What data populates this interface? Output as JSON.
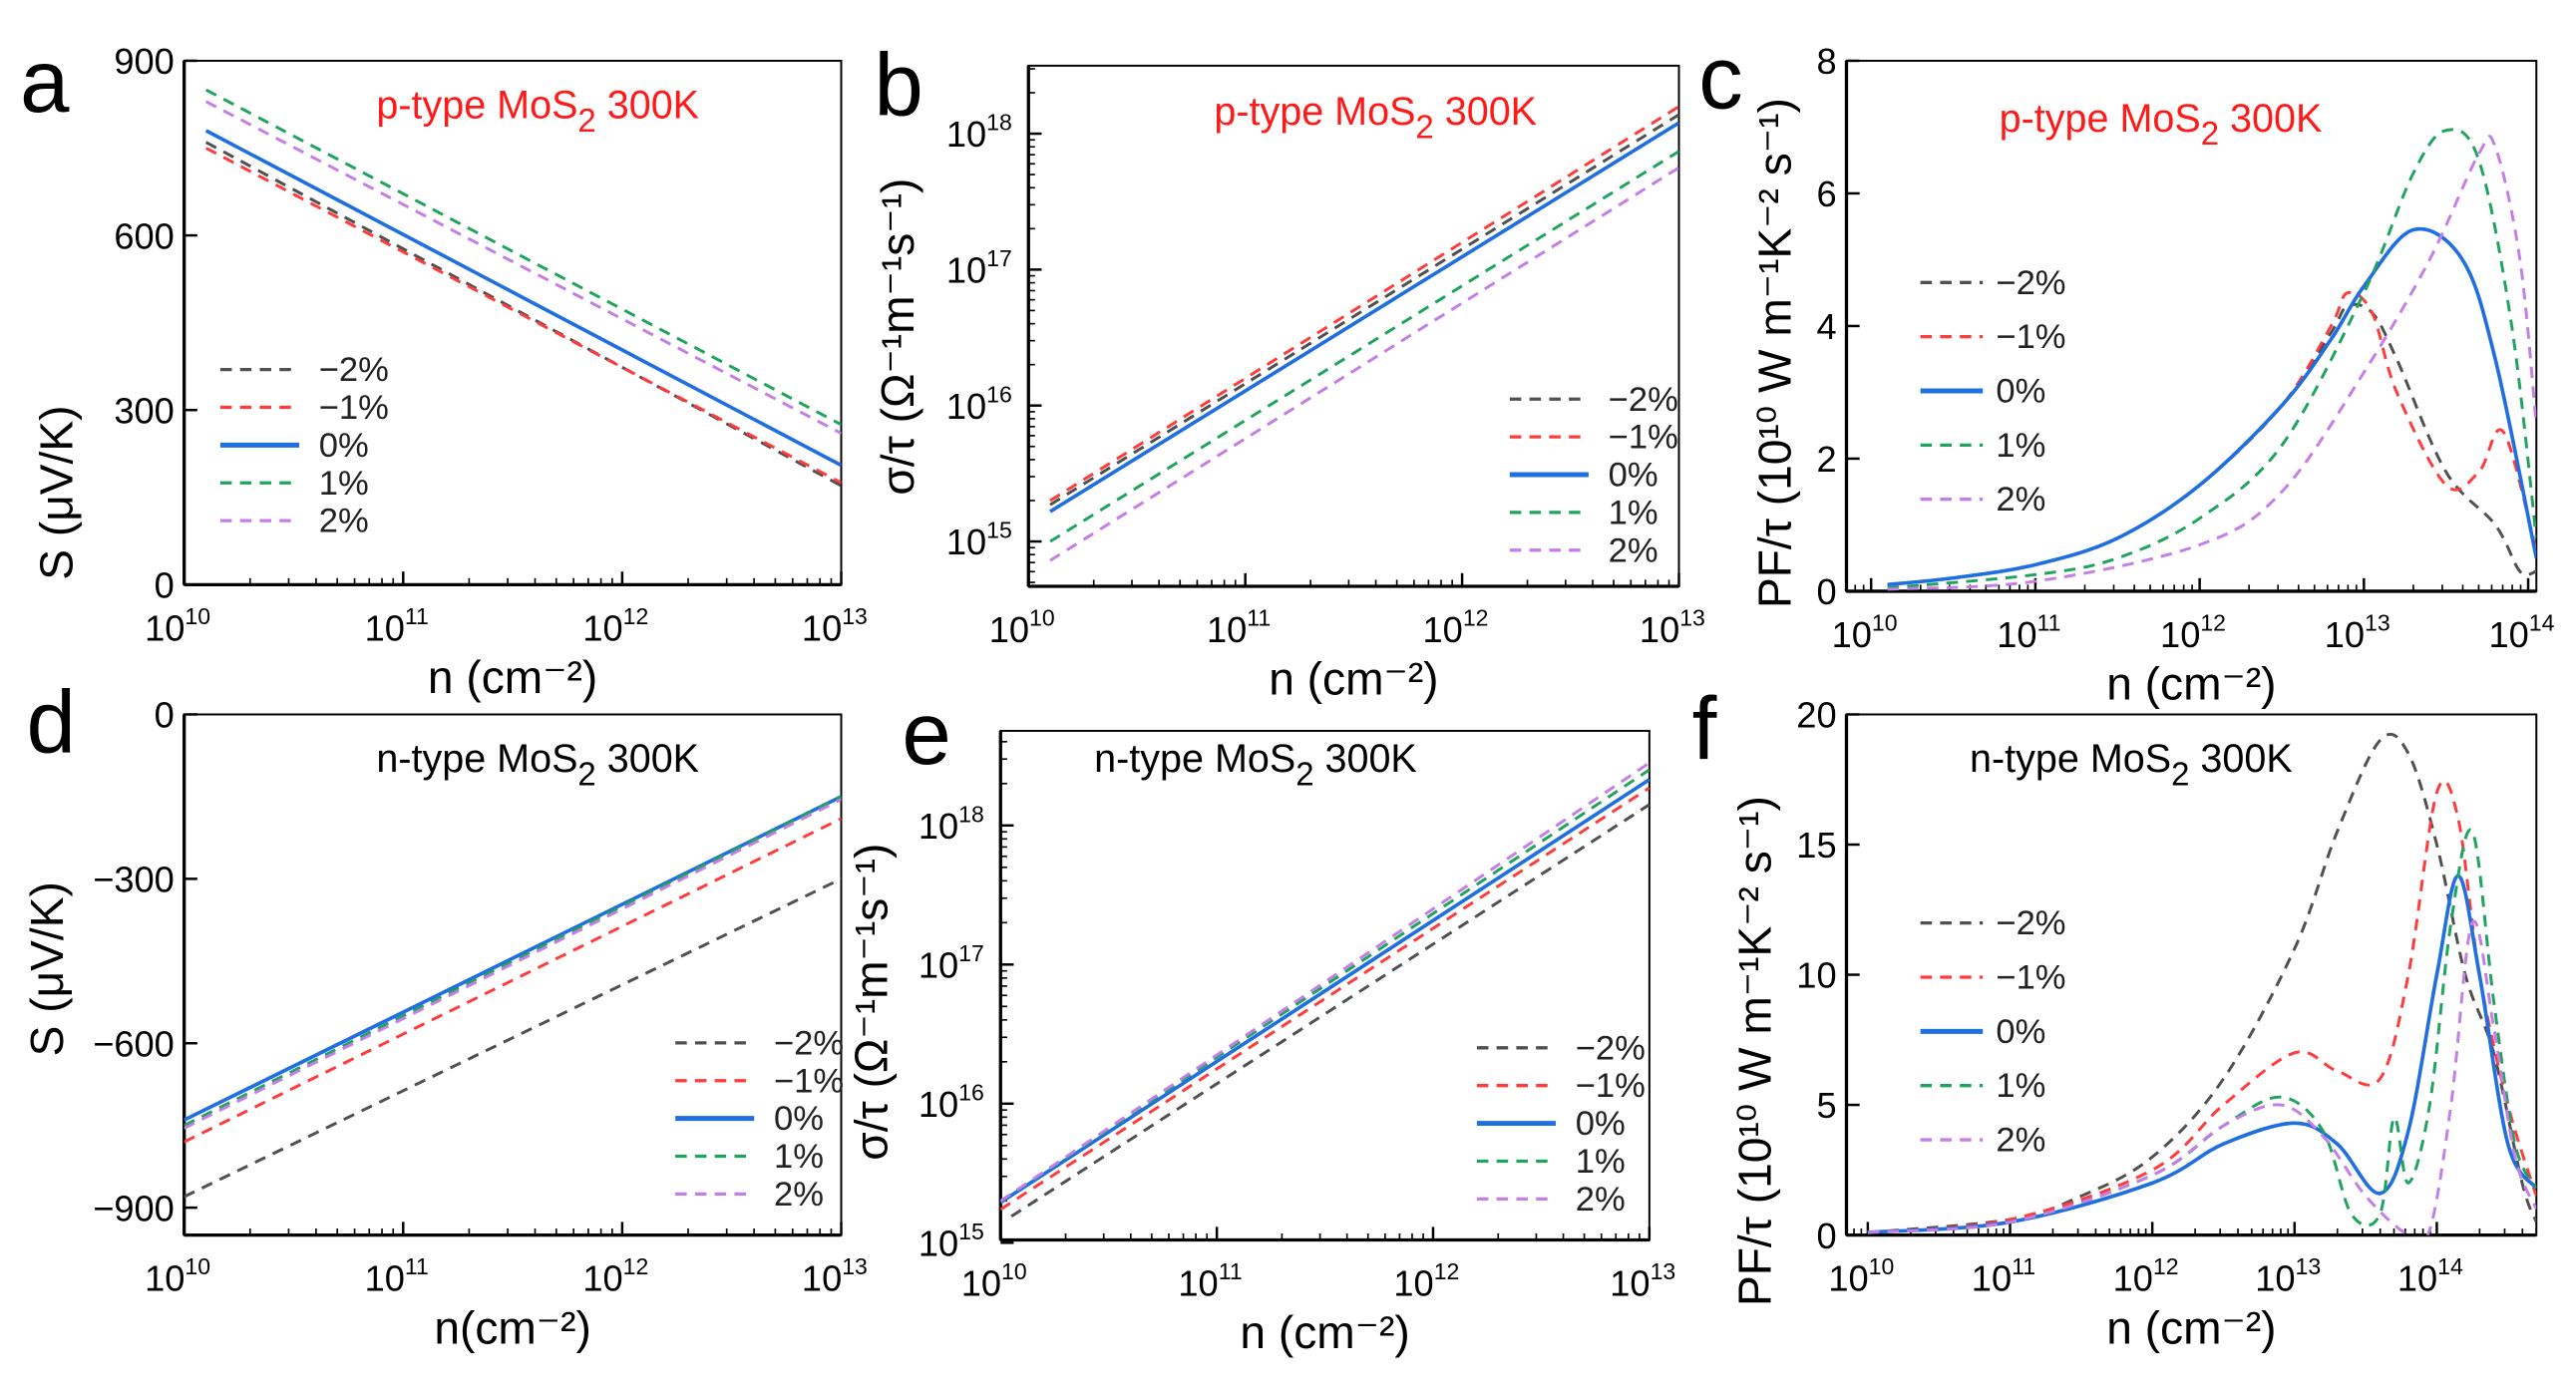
{
  "colors": {
    "-2%": "#505050",
    "-1%": "#ff3b3b",
    "0%": "#1f6fe0",
    "1%": "#1fa35e",
    "2%": "#c47ee6"
  },
  "chart_data": [
    {
      "panel": "a",
      "type": "line",
      "title": {
        "prefix": "p-type  MoS",
        "sub": "2",
        "suffix": "  300K",
        "color": "#ff1a1a"
      },
      "xlabel": "n (cm⁻²)",
      "ylabel": "S (μV/K)",
      "xscale": "log",
      "xlim_log10": [
        10,
        13
      ],
      "x_ticks_log10": [
        10,
        11,
        12,
        13
      ],
      "yscale": "linear",
      "ylim": [
        0,
        900
      ],
      "y_ticks": [
        0,
        300,
        600,
        900
      ],
      "series": [
        {
          "name": "−2%",
          "key": "-2%",
          "dash": true,
          "points": [
            [
              10.1,
              760
            ],
            [
              13,
              170
            ]
          ]
        },
        {
          "name": "−1%",
          "key": "-1%",
          "dash": true,
          "points": [
            [
              10.1,
              750
            ],
            [
              13,
              175
            ]
          ]
        },
        {
          "name": "0%",
          "key": "0%",
          "dash": false,
          "points": [
            [
              10.1,
              780
            ],
            [
              13,
              205
            ]
          ]
        },
        {
          "name": "1%",
          "key": "1%",
          "dash": true,
          "points": [
            [
              10.1,
              850
            ],
            [
              13,
              275
            ]
          ]
        },
        {
          "name": "2%",
          "key": "2%",
          "dash": true,
          "points": [
            [
              10.1,
              830
            ],
            [
              13,
              260
            ]
          ]
        }
      ]
    },
    {
      "panel": "b",
      "type": "line",
      "title": {
        "prefix": "p-type  MoS",
        "sub": "2",
        "suffix": "  300K",
        "color": "#ff1a1a"
      },
      "xlabel": "n (cm⁻²)",
      "ylabel": "σ/τ (Ω⁻¹m⁻¹s⁻¹)",
      "xscale": "log",
      "xlim_log10": [
        10,
        13
      ],
      "x_ticks_log10": [
        10,
        11,
        12,
        13
      ],
      "yscale": "log",
      "ylim_log10": [
        14.67,
        18.5
      ],
      "y_ticks_log10": [
        15,
        16,
        17,
        18
      ],
      "series": [
        {
          "name": "−2%",
          "key": "-2%",
          "dash": true,
          "points": [
            [
              10.1,
              15.27
            ],
            [
              13,
              18.14
            ]
          ]
        },
        {
          "name": "−1%",
          "key": "-1%",
          "dash": true,
          "points": [
            [
              10.1,
              15.3
            ],
            [
              13,
              18.2
            ]
          ]
        },
        {
          "name": "0%",
          "key": "0%",
          "dash": false,
          "points": [
            [
              10.1,
              15.22
            ],
            [
              13,
              18.08
            ]
          ]
        },
        {
          "name": "1%",
          "key": "1%",
          "dash": true,
          "points": [
            [
              10.1,
              15.0
            ],
            [
              13,
              17.87
            ]
          ]
        },
        {
          "name": "2%",
          "key": "2%",
          "dash": true,
          "points": [
            [
              10.1,
              14.86
            ],
            [
              13,
              17.75
            ]
          ]
        }
      ]
    },
    {
      "panel": "c",
      "type": "line",
      "title": {
        "prefix": "p-type MoS",
        "sub": "2",
        "suffix": " 300K",
        "color": "#ff1a1a"
      },
      "xlabel": "n (cm⁻²)",
      "ylabel": "PF/τ (10¹⁰ W m⁻¹K⁻² s⁻¹)",
      "xscale": "log",
      "xlim_log10": [
        9.85,
        14.05
      ],
      "x_ticks_log10": [
        10,
        11,
        12,
        13,
        14
      ],
      "yscale": "linear",
      "ylim": [
        0,
        8
      ],
      "y_ticks": [
        0,
        2,
        4,
        6,
        8
      ],
      "series": [
        {
          "name": "−2%",
          "key": "-2%",
          "dash": true,
          "points": [
            [
              10.1,
              0.1
            ],
            [
              10.5,
              0.2
            ],
            [
              11,
              0.4
            ],
            [
              11.5,
              0.8
            ],
            [
              12,
              1.6
            ],
            [
              12.5,
              2.8
            ],
            [
              12.8,
              3.9
            ],
            [
              12.9,
              4.3
            ],
            [
              13.05,
              4.2
            ],
            [
              13.2,
              3.5
            ],
            [
              13.5,
              1.8
            ],
            [
              13.8,
              1.0
            ],
            [
              13.95,
              0.3
            ],
            [
              14.05,
              0.3
            ]
          ]
        },
        {
          "name": "−1%",
          "key": "-1%",
          "dash": true,
          "points": [
            [
              10.1,
              0.1
            ],
            [
              10.5,
              0.2
            ],
            [
              11,
              0.4
            ],
            [
              11.5,
              0.8
            ],
            [
              12,
              1.6
            ],
            [
              12.5,
              2.8
            ],
            [
              12.8,
              4.0
            ],
            [
              12.9,
              4.5
            ],
            [
              13.05,
              4.2
            ],
            [
              13.2,
              3.0
            ],
            [
              13.5,
              1.6
            ],
            [
              13.7,
              1.8
            ],
            [
              13.85,
              2.4
            ],
            [
              14.05,
              0.6
            ]
          ]
        },
        {
          "name": "0%",
          "key": "0%",
          "dash": false,
          "points": [
            [
              10.1,
              0.1
            ],
            [
              10.5,
              0.2
            ],
            [
              11,
              0.4
            ],
            [
              11.5,
              0.8
            ],
            [
              12,
              1.6
            ],
            [
              12.5,
              2.8
            ],
            [
              12.8,
              3.8
            ],
            [
              13,
              4.6
            ],
            [
              13.3,
              5.45
            ],
            [
              13.6,
              5.0
            ],
            [
              13.8,
              3.5
            ],
            [
              14.05,
              0.5
            ]
          ]
        },
        {
          "name": "1%",
          "key": "1%",
          "dash": true,
          "points": [
            [
              10.1,
              0.05
            ],
            [
              11,
              0.25
            ],
            [
              11.5,
              0.5
            ],
            [
              12,
              1.1
            ],
            [
              12.5,
              2.2
            ],
            [
              13,
              4.5
            ],
            [
              13.3,
              6.3
            ],
            [
              13.5,
              6.95
            ],
            [
              13.7,
              6.5
            ],
            [
              13.9,
              4.0
            ],
            [
              14.05,
              0.8
            ]
          ]
        },
        {
          "name": "2%",
          "key": "2%",
          "dash": true,
          "points": [
            [
              10.1,
              0.03
            ],
            [
              11,
              0.15
            ],
            [
              12,
              0.7
            ],
            [
              12.5,
              1.5
            ],
            [
              13,
              3.3
            ],
            [
              13.4,
              5.0
            ],
            [
              13.7,
              6.6
            ],
            [
              13.8,
              6.7
            ],
            [
              13.95,
              5.0
            ],
            [
              14.05,
              2.5
            ]
          ]
        }
      ]
    },
    {
      "panel": "d",
      "type": "line",
      "title": {
        "prefix": "n-type  MoS",
        "sub": "2",
        "suffix": "  300K",
        "color": "#000000"
      },
      "xlabel": "n(cm⁻²)",
      "ylabel": "S (μV/K)",
      "xscale": "log",
      "xlim_log10": [
        10,
        13
      ],
      "x_ticks_log10": [
        10,
        11,
        12,
        13
      ],
      "yscale": "linear",
      "ylim": [
        -950,
        0
      ],
      "y_ticks": [
        -900,
        -600,
        -300,
        0
      ],
      "series": [
        {
          "name": "−2%",
          "key": "-2%",
          "dash": true,
          "points": [
            [
              10,
              -880
            ],
            [
              13,
              -300
            ]
          ]
        },
        {
          "name": "−1%",
          "key": "-1%",
          "dash": true,
          "points": [
            [
              10,
              -780
            ],
            [
              13,
              -190
            ]
          ]
        },
        {
          "name": "0%",
          "key": "0%",
          "dash": false,
          "points": [
            [
              10,
              -740
            ],
            [
              13,
              -150
            ]
          ]
        },
        {
          "name": "1%",
          "key": "1%",
          "dash": true,
          "points": [
            [
              10,
              -750
            ],
            [
              13,
              -150
            ]
          ]
        },
        {
          "name": "2%",
          "key": "2%",
          "dash": true,
          "points": [
            [
              10,
              -755
            ],
            [
              13,
              -155
            ]
          ]
        }
      ]
    },
    {
      "panel": "e",
      "type": "line",
      "title": {
        "prefix": "n-type  MoS",
        "sub": "2",
        "suffix": "  300K",
        "color": "#000000"
      },
      "xlabel": "n (cm⁻²)",
      "ylabel": "σ/τ (Ω⁻¹m⁻¹s⁻¹)",
      "xscale": "log",
      "xlim_log10": [
        10,
        13
      ],
      "x_ticks_log10": [
        10,
        11,
        12,
        13
      ],
      "yscale": "log",
      "ylim_log10": [
        15.02,
        18.68
      ],
      "y_ticks_log10": [
        15,
        16,
        17,
        18
      ],
      "series": [
        {
          "name": "−2%",
          "key": "-2%",
          "dash": true,
          "points": [
            [
              10.05,
              15.19
            ],
            [
              13,
              18.15
            ]
          ]
        },
        {
          "name": "−1%",
          "key": "-1%",
          "dash": true,
          "points": [
            [
              10,
              15.24
            ],
            [
              13,
              18.27
            ]
          ]
        },
        {
          "name": "0%",
          "key": "0%",
          "dash": false,
          "points": [
            [
              10,
              15.29
            ],
            [
              13,
              18.33
            ]
          ]
        },
        {
          "name": "1%",
          "key": "1%",
          "dash": true,
          "points": [
            [
              10,
              15.3
            ],
            [
              13,
              18.4
            ]
          ]
        },
        {
          "name": "2%",
          "key": "2%",
          "dash": true,
          "points": [
            [
              10,
              15.3
            ],
            [
              13,
              18.45
            ]
          ]
        }
      ]
    },
    {
      "panel": "f",
      "type": "line",
      "title": {
        "prefix": "n-type MoS",
        "sub": "2",
        "suffix": " 300K",
        "color": "#000000"
      },
      "xlabel": "n (cm⁻²)",
      "ylabel": "PF/τ (10¹⁰ W m⁻¹K⁻² s⁻¹)",
      "xscale": "log",
      "xlim_log10": [
        9.85,
        14.7
      ],
      "x_ticks_log10": [
        10,
        11,
        12,
        13,
        14
      ],
      "yscale": "linear",
      "ylim": [
        0,
        20
      ],
      "y_ticks": [
        0,
        5,
        10,
        15,
        20
      ],
      "series": [
        {
          "name": "−2%",
          "key": "-2%",
          "dash": true,
          "points": [
            [
              10,
              0.1
            ],
            [
              11,
              0.6
            ],
            [
              11.5,
              1.5
            ],
            [
              12,
              3
            ],
            [
              12.5,
              6
            ],
            [
              13,
              11
            ],
            [
              13.3,
              15.5
            ],
            [
              13.6,
              19
            ],
            [
              13.8,
              18.5
            ],
            [
              14,
              15
            ],
            [
              14.2,
              10
            ],
            [
              14.4,
              7
            ],
            [
              14.6,
              2
            ],
            [
              14.7,
              0.5
            ]
          ]
        },
        {
          "name": "−1%",
          "key": "-1%",
          "dash": true,
          "points": [
            [
              10,
              0.1
            ],
            [
              11,
              0.6
            ],
            [
              12,
              2.5
            ],
            [
              12.5,
              5
            ],
            [
              13,
              7
            ],
            [
              13.3,
              6.3
            ],
            [
              13.6,
              6
            ],
            [
              13.8,
              10
            ],
            [
              14,
              17
            ],
            [
              14.15,
              16
            ],
            [
              14.3,
              10
            ],
            [
              14.5,
              5
            ],
            [
              14.7,
              1.5
            ]
          ]
        },
        {
          "name": "0%",
          "key": "0%",
          "dash": false,
          "points": [
            [
              10,
              0.1
            ],
            [
              11,
              0.5
            ],
            [
              12,
              2
            ],
            [
              12.5,
              3.5
            ],
            [
              13,
              4.3
            ],
            [
              13.3,
              3.5
            ],
            [
              13.6,
              1.6
            ],
            [
              13.8,
              4
            ],
            [
              14,
              10
            ],
            [
              14.15,
              13.8
            ],
            [
              14.3,
              10
            ],
            [
              14.5,
              3.5
            ],
            [
              14.7,
              1.8
            ]
          ]
        },
        {
          "name": "1%",
          "key": "1%",
          "dash": true,
          "points": [
            [
              10,
              0.1
            ],
            [
              11,
              0.5
            ],
            [
              12,
              2.3
            ],
            [
              12.5,
              4.2
            ],
            [
              12.9,
              5.3
            ],
            [
              13.2,
              4
            ],
            [
              13.4,
              0.8
            ],
            [
              13.6,
              0.8
            ],
            [
              13.7,
              4.5
            ],
            [
              13.8,
              2
            ],
            [
              13.95,
              5
            ],
            [
              14.1,
              12
            ],
            [
              14.25,
              15.5
            ],
            [
              14.4,
              9
            ],
            [
              14.55,
              3.5
            ],
            [
              14.7,
              1.8
            ]
          ]
        },
        {
          "name": "2%",
          "key": "2%",
          "dash": true,
          "points": [
            [
              10,
              0.1
            ],
            [
              11,
              0.5
            ],
            [
              12,
              2.3
            ],
            [
              12.5,
              4.2
            ],
            [
              12.9,
              5.0
            ],
            [
              13.2,
              3.8
            ],
            [
              13.5,
              1.5
            ],
            [
              13.8,
              0
            ],
            [
              13.95,
              0.2
            ],
            [
              14.1,
              5
            ],
            [
              14.25,
              12
            ],
            [
              14.4,
              8
            ],
            [
              14.55,
              3
            ],
            [
              14.7,
              1
            ]
          ]
        }
      ]
    }
  ]
}
